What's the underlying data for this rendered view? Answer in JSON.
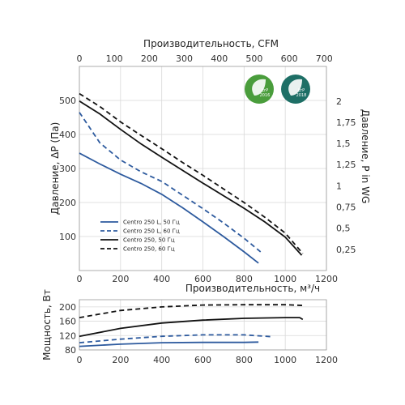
{
  "badges": [
    {
      "line1": "ErP",
      "line2": "2016",
      "color": "#4a9d3c"
    },
    {
      "line1": "ErP",
      "line2": "2018",
      "color": "#1e6f66"
    }
  ],
  "chart_data": [
    {
      "type": "line",
      "title": "",
      "xlabel": "",
      "ylabel": "Давление, ΔP (Па)",
      "x_top_label": "Производительность, CFM",
      "y_right_label": "Давление,  P in WG",
      "xlim": [
        0,
        1200
      ],
      "ylim": [
        0,
        600
      ],
      "x_ticks": [
        "0",
        "200",
        "400",
        "600",
        "800",
        "1000",
        "1200"
      ],
      "y_ticks": [
        "100",
        "200",
        "300",
        "400",
        "500"
      ],
      "x_top_ticks": [
        "0",
        "100",
        "200",
        "300",
        "400",
        "500",
        "600",
        "700"
      ],
      "y_right_ticks": [
        "0,25",
        "0,5",
        "0,75",
        "1",
        "1,25",
        "1,5",
        "1,75",
        "2"
      ],
      "grid": true,
      "legend_position": "bottom-left",
      "series": [
        {
          "name": "Centro 250 L, 50 Гц",
          "color": "#2d5a9e",
          "dash": false,
          "x": [
            0,
            100,
            200,
            300,
            400,
            500,
            600,
            700,
            800,
            870
          ],
          "y": [
            345,
            313,
            283,
            256,
            224,
            185,
            143,
            100,
            55,
            22
          ]
        },
        {
          "name": "Centro 250 L, 60 Гц",
          "color": "#2d5a9e",
          "dash": true,
          "x": [
            0,
            100,
            200,
            300,
            400,
            500,
            600,
            700,
            800,
            880
          ],
          "y": [
            465,
            375,
            325,
            290,
            262,
            222,
            182,
            140,
            95,
            55
          ]
        },
        {
          "name": "Centro 250, 50 Гц",
          "color": "#111111",
          "dash": false,
          "x": [
            0,
            100,
            200,
            300,
            400,
            500,
            600,
            700,
            800,
            900,
            1000,
            1080
          ],
          "y": [
            498,
            460,
            415,
            372,
            333,
            295,
            257,
            220,
            183,
            143,
            98,
            45
          ]
        },
        {
          "name": "Centro 250, 60 Гц",
          "color": "#111111",
          "dash": true,
          "x": [
            0,
            100,
            200,
            300,
            400,
            500,
            600,
            700,
            800,
            900,
            1000,
            1085
          ],
          "y": [
            520,
            482,
            437,
            397,
            358,
            318,
            280,
            240,
            200,
            157,
            110,
            50
          ]
        }
      ]
    },
    {
      "type": "line",
      "title": "",
      "xlabel": "Производительность, м³/ч",
      "ylabel": "Мощность, Вт",
      "xlim": [
        0,
        1200
      ],
      "ylim": [
        80,
        220
      ],
      "x_ticks": [
        "0",
        "200",
        "400",
        "600",
        "800",
        "1000",
        "1200"
      ],
      "y_ticks": [
        "80",
        "120",
        "160",
        "200"
      ],
      "grid": true,
      "series": [
        {
          "color": "#2d5a9e",
          "dash": false,
          "x": [
            0,
            200,
            400,
            600,
            800,
            870
          ],
          "y": [
            90,
            96,
            100,
            101,
            101,
            102
          ]
        },
        {
          "color": "#2d5a9e",
          "dash": true,
          "x": [
            0,
            200,
            400,
            600,
            800,
            930
          ],
          "y": [
            100,
            110,
            118,
            122,
            122,
            117
          ]
        },
        {
          "color": "#111111",
          "dash": false,
          "x": [
            0,
            200,
            400,
            600,
            800,
            1000,
            1070,
            1085
          ],
          "y": [
            118,
            140,
            155,
            163,
            168,
            170,
            170,
            165
          ]
        },
        {
          "color": "#111111",
          "dash": true,
          "x": [
            0,
            200,
            400,
            600,
            800,
            1000,
            1085
          ],
          "y": [
            170,
            190,
            200,
            205,
            206,
            206,
            204
          ]
        }
      ]
    }
  ]
}
